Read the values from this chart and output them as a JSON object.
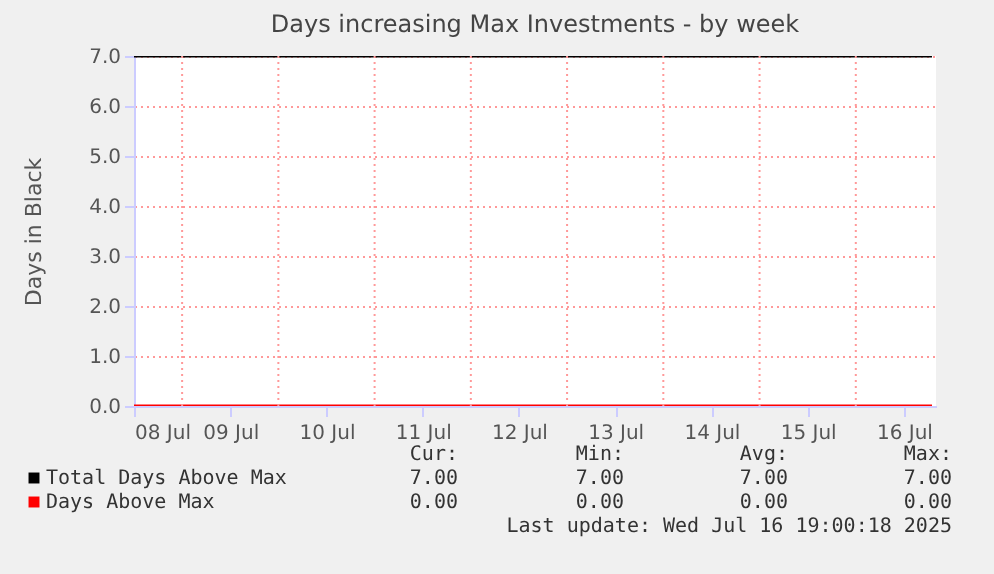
{
  "chart_data": {
    "type": "line",
    "title": "Days increasing Max Investments - by week",
    "ylabel": "Days in Black",
    "x": [
      "2025-07-08T12:00",
      "2025-07-16T19:00"
    ],
    "series": [
      {
        "name": "Total Days Above Max",
        "color": "#000000",
        "values": [
          7,
          7
        ]
      },
      {
        "name": "Days Above Max",
        "color": "#ff0000",
        "values": [
          0,
          0
        ]
      }
    ],
    "xlim": [
      "2025-07-08T12:00",
      "2025-07-16T20:00"
    ],
    "xticks": [
      {
        "value": "2025-07-08T12:00",
        "label": "08 Jul"
      },
      {
        "value": "2025-07-09T00:00",
        "label": null
      },
      {
        "value": "2025-07-09T12:00",
        "label": "09 Jul"
      },
      {
        "value": "2025-07-10T00:00",
        "label": null
      },
      {
        "value": "2025-07-10T12:00",
        "label": "10 Jul"
      },
      {
        "value": "2025-07-11T00:00",
        "label": null
      },
      {
        "value": "2025-07-11T12:00",
        "label": "11 Jul"
      },
      {
        "value": "2025-07-12T00:00",
        "label": null
      },
      {
        "value": "2025-07-12T12:00",
        "label": "12 Jul"
      },
      {
        "value": "2025-07-13T00:00",
        "label": null
      },
      {
        "value": "2025-07-13T12:00",
        "label": "13 Jul"
      },
      {
        "value": "2025-07-14T00:00",
        "label": null
      },
      {
        "value": "2025-07-14T12:00",
        "label": "14 Jul"
      },
      {
        "value": "2025-07-15T00:00",
        "label": null
      },
      {
        "value": "2025-07-15T12:00",
        "label": "15 Jul"
      },
      {
        "value": "2025-07-16T00:00",
        "label": null
      },
      {
        "value": "2025-07-16T12:00",
        "label": "16 Jul"
      }
    ],
    "ylim": [
      0,
      7
    ],
    "yticks": [
      {
        "value": 0,
        "label": "0.0"
      },
      {
        "value": 1,
        "label": "1.0"
      },
      {
        "value": 2,
        "label": "2.0"
      },
      {
        "value": 3,
        "label": "3.0"
      },
      {
        "value": 4,
        "label": "4.0"
      },
      {
        "value": 5,
        "label": "5.0"
      },
      {
        "value": 6,
        "label": "6.0"
      },
      {
        "value": 7,
        "label": "7.0"
      }
    ],
    "grid": true,
    "legend": "bottom",
    "annotations": [
      "Cur:",
      "Min:",
      "Avg:",
      "Max:",
      "7.00",
      "7.00",
      "7.00",
      "7.00",
      "0.00",
      "0.00",
      "0.00",
      "0.00",
      "Last update: Wed Jul 16 19:00:18 2025"
    ]
  }
}
